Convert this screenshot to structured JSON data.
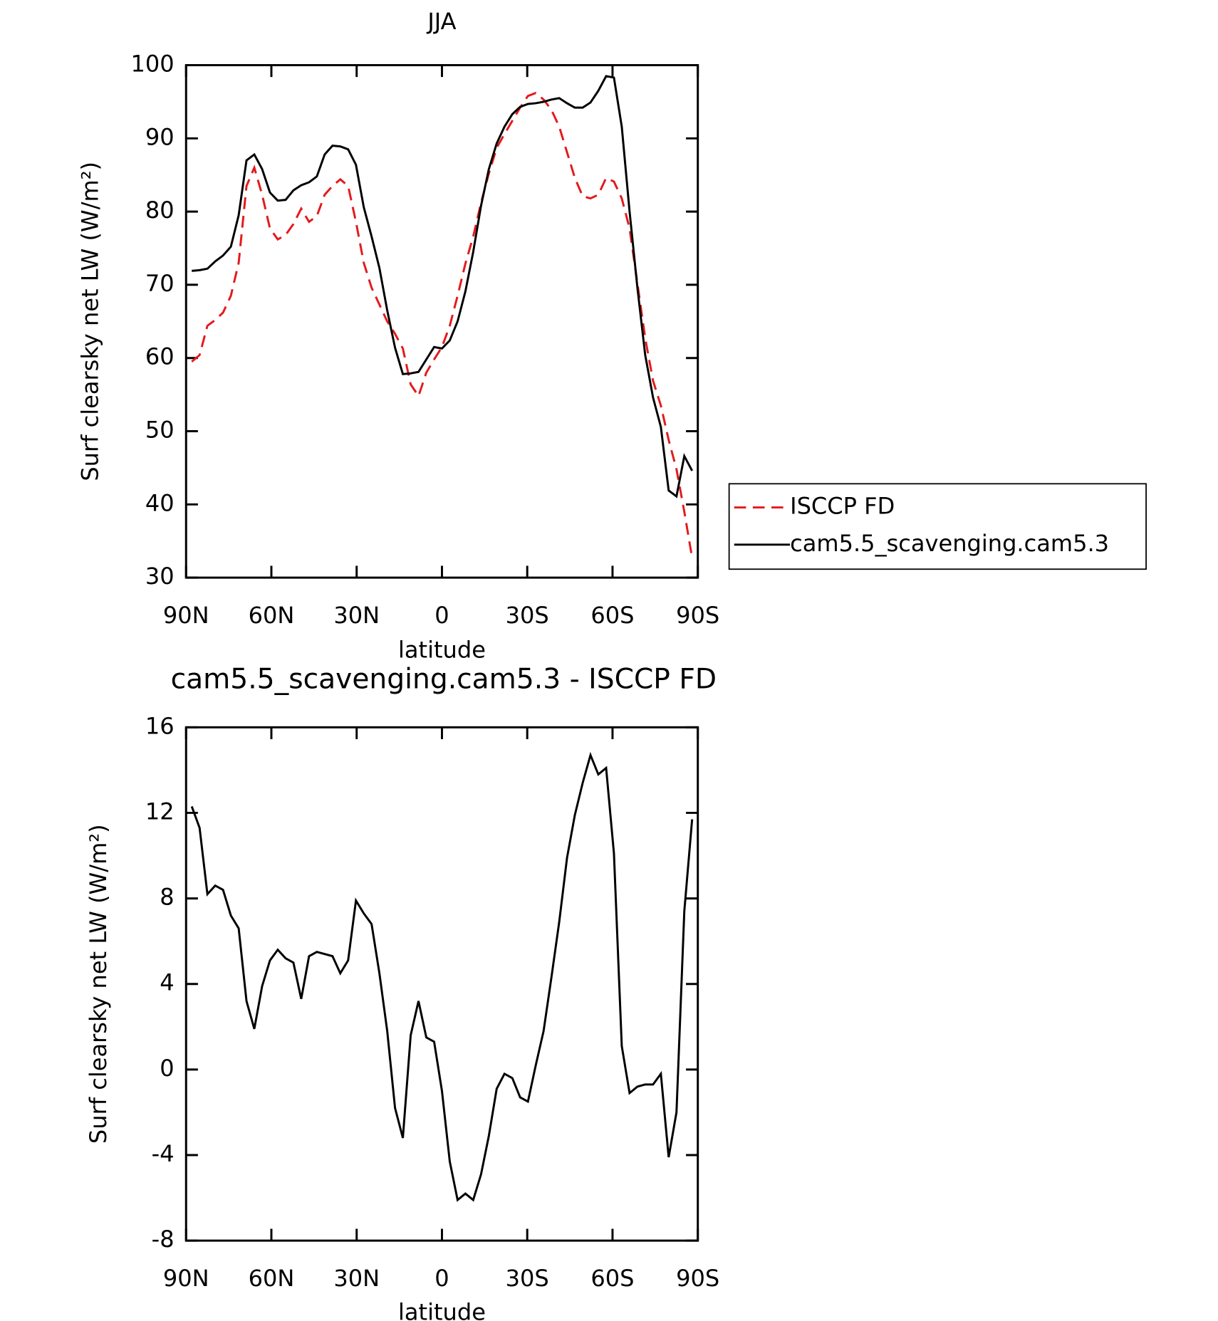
{
  "chart_data": [
    {
      "type": "line",
      "title": "JJA",
      "xlabel": "latitude",
      "ylabel": "Surf clearsky net LW (W/m²)",
      "x": [
        88,
        85.25,
        82.5,
        79.75,
        77,
        74.25,
        71.5,
        68.75,
        66,
        63.25,
        60.5,
        57.75,
        55,
        52.25,
        49.5,
        46.75,
        44,
        41.25,
        38.5,
        35.75,
        33,
        30.25,
        27.5,
        24.75,
        22,
        19.25,
        16.5,
        13.75,
        11,
        8.25,
        5.5,
        2.75,
        0,
        -2.75,
        -5.5,
        -8.25,
        -11,
        -13.75,
        -16.5,
        -19.25,
        -22,
        -24.75,
        -27.5,
        -30.25,
        -33,
        -35.75,
        -38.5,
        -41.25,
        -44,
        -46.75,
        -49.5,
        -52.25,
        -55,
        -57.75,
        -60.5,
        -63.25,
        -66,
        -68.75,
        -71.5,
        -74.25,
        -77,
        -79.75,
        -82.5,
        -85.25,
        -88
      ],
      "series": [
        {
          "name": "ISCCP FD",
          "color": "#e41a1c",
          "linestyle": "dashed",
          "values": [
            59.5,
            60.4,
            64.4,
            65.2,
            66.2,
            68.5,
            73,
            83.5,
            86,
            82.3,
            77.7,
            76.2,
            76.8,
            78.3,
            80.4,
            78.6,
            79.4,
            82.3,
            83.5,
            84.4,
            83.5,
            78.6,
            73,
            69.6,
            67.3,
            65,
            63.3,
            61.3,
            56.4,
            54.8,
            58,
            59.8,
            61.5,
            64.4,
            68.5,
            72.9,
            76.6,
            81.2,
            85.2,
            88.7,
            90.6,
            92.4,
            94.2,
            95.8,
            96.2,
            95.3,
            93.9,
            91.6,
            88.1,
            84.6,
            82.1,
            81.8,
            82.3,
            84.6,
            84.1,
            81.8,
            77.7,
            70.2,
            62.7,
            56.9,
            53.5,
            48.8,
            44.8,
            39,
            32.7
          ]
        },
        {
          "name": "cam5.5_scavenging.cam5.3",
          "color": "#000000",
          "linestyle": "solid",
          "values": [
            71.9,
            72,
            72.2,
            73.2,
            74,
            75.2,
            79.5,
            87,
            87.8,
            85.8,
            82.6,
            81.5,
            81.6,
            82.9,
            83.6,
            84,
            84.8,
            87.8,
            89,
            88.9,
            88.5,
            86.4,
            80.6,
            76.6,
            72.3,
            66.5,
            61.4,
            57.8,
            57.9,
            58.1,
            59.8,
            61.5,
            61.3,
            62.4,
            65,
            69.1,
            74.5,
            80.8,
            85.8,
            89.3,
            91.6,
            93.3,
            94.3,
            94.7,
            94.8,
            95,
            95.3,
            95.5,
            94.8,
            94.2,
            94.2,
            94.9,
            96.5,
            98.5,
            98.3,
            91.6,
            80,
            69.6,
            60.4,
            54.6,
            50.6,
            41.9,
            41.1,
            46.6,
            44.6
          ]
        }
      ],
      "xlim": [
        90,
        -90
      ],
      "xticks": [
        {
          "value": 90,
          "label": "90N"
        },
        {
          "value": 60,
          "label": "60N"
        },
        {
          "value": 30,
          "label": "30N"
        },
        0,
        {
          "value": -30,
          "label": "30S"
        },
        {
          "value": -60,
          "label": "60S"
        },
        {
          "value": -90,
          "label": "90S"
        }
      ],
      "ylim": [
        30,
        100
      ],
      "yticks": [
        30,
        40,
        50,
        60,
        70,
        80,
        90,
        100
      ],
      "legend": "right"
    },
    {
      "type": "line",
      "title": "cam5.5_scavenging.cam5.3 - ISCCP FD",
      "xlabel": "latitude",
      "ylabel": "Surf clearsky net LW (W/m²)",
      "x": [
        88,
        85.25,
        82.5,
        79.75,
        77,
        74.25,
        71.5,
        68.75,
        66,
        63.25,
        60.5,
        57.75,
        55,
        52.25,
        49.5,
        46.75,
        44,
        41.25,
        38.5,
        35.75,
        33,
        30.25,
        27.5,
        24.75,
        22,
        19.25,
        16.5,
        13.75,
        11,
        8.25,
        5.5,
        2.75,
        0,
        -2.75,
        -5.5,
        -8.25,
        -11,
        -13.75,
        -16.5,
        -19.25,
        -22,
        -24.75,
        -27.5,
        -30.25,
        -33,
        -35.75,
        -38.5,
        -41.25,
        -44,
        -46.75,
        -49.5,
        -52.25,
        -55,
        -57.75,
        -60.5,
        -63.25,
        -66,
        -68.75,
        -71.5,
        -74.25,
        -77,
        -79.75,
        -82.5,
        -85.25,
        -88
      ],
      "series": [
        {
          "color": "#000000",
          "linestyle": "solid",
          "values": [
            12.3,
            11.3,
            8.2,
            8.6,
            8.4,
            7.2,
            6.6,
            3.2,
            1.9,
            3.9,
            5.1,
            5.6,
            5.2,
            5,
            3.3,
            5.3,
            5.5,
            5.4,
            5.3,
            4.5,
            5.1,
            7.9,
            7.3,
            6.8,
            4.5,
            1.8,
            -1.8,
            -3.2,
            1.6,
            3.2,
            1.5,
            1.3,
            -1,
            -4.3,
            -6.1,
            -5.8,
            -6.1,
            -4.9,
            -3.1,
            -0.9,
            -0.2,
            -0.4,
            -1.3,
            -1.5,
            0.2,
            1.8,
            4.3,
            6.9,
            9.9,
            11.9,
            13.4,
            14.7,
            13.8,
            14.1,
            10.1,
            1.1,
            -1.1,
            -0.8,
            -0.7,
            -0.7,
            -0.2,
            -4.1,
            -2,
            7.4,
            11.7
          ]
        }
      ],
      "xlim": [
        90,
        -90
      ],
      "xticks": [
        {
          "value": 90,
          "label": "90N"
        },
        {
          "value": 60,
          "label": "60N"
        },
        {
          "value": 30,
          "label": "30N"
        },
        0,
        {
          "value": -30,
          "label": "30S"
        },
        {
          "value": -60,
          "label": "60S"
        },
        {
          "value": -90,
          "label": "90S"
        }
      ],
      "ylim": [
        -8,
        16
      ],
      "yticks": [
        -8,
        -4,
        0,
        4,
        8,
        12,
        16
      ]
    }
  ]
}
